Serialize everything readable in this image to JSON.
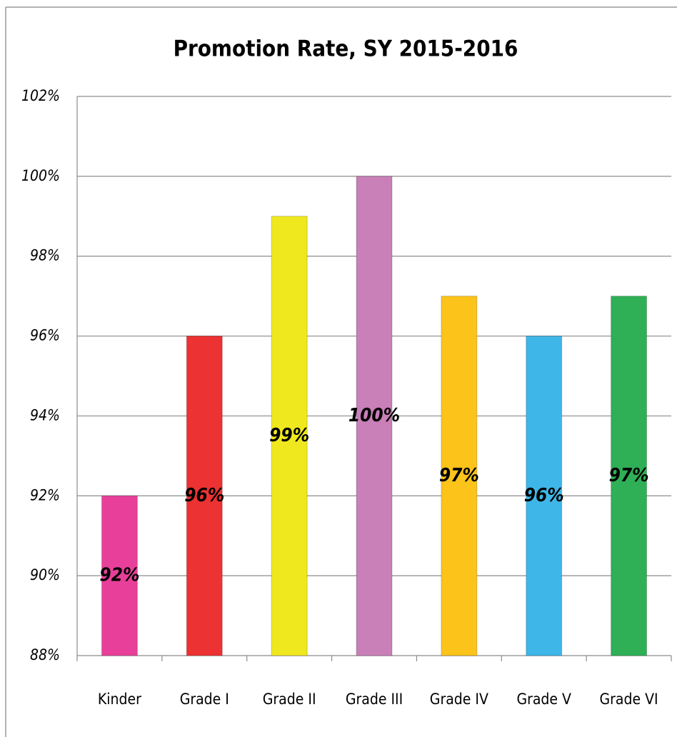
{
  "chart_data": {
    "type": "bar",
    "title": "Promotion Rate, SY 2015-2016",
    "categories": [
      "Kinder",
      "Grade I",
      "Grade II",
      "Grade III",
      "Grade IV",
      "Grade V",
      "Grade VI"
    ],
    "values": [
      92,
      96,
      99,
      100,
      97,
      96,
      97
    ],
    "value_labels": [
      "92%",
      "96%",
      "99%",
      "100%",
      "97%",
      "96%",
      "97%"
    ],
    "colors": [
      "#e8409a",
      "#ec3232",
      "#f0e81e",
      "#c97fb8",
      "#fcc31a",
      "#3fb6e8",
      "#2faf56"
    ],
    "ylim": [
      88,
      102
    ],
    "yticks": [
      {
        "value": 88,
        "label": "88%"
      },
      {
        "value": 90,
        "label": "90%"
      },
      {
        "value": 92,
        "label": "92%"
      },
      {
        "value": 94,
        "label": "94%"
      },
      {
        "value": 96,
        "label": "96%"
      },
      {
        "value": 98,
        "label": "98%"
      },
      {
        "value": 100,
        "label": "100%"
      },
      {
        "value": 102,
        "label": "102%"
      }
    ],
    "grid": true
  }
}
